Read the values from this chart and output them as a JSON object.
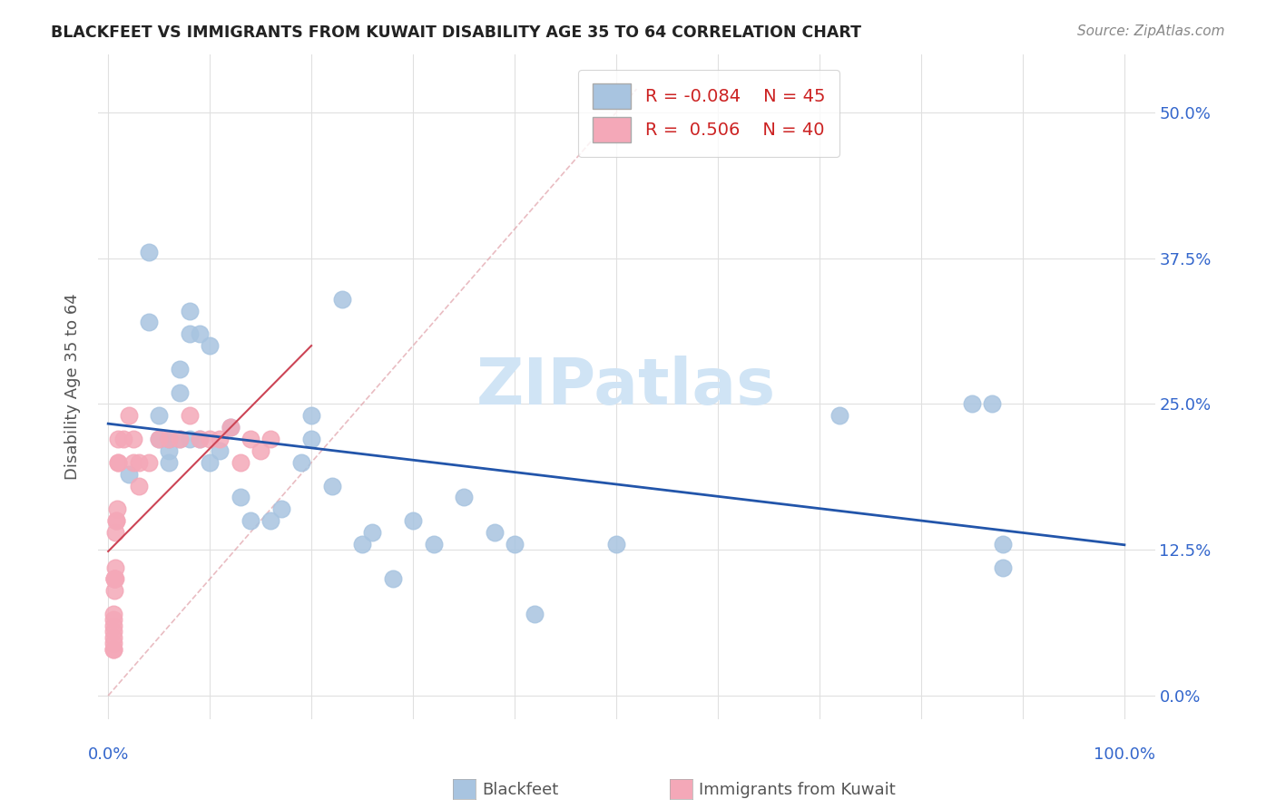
{
  "title": "BLACKFEET VS IMMIGRANTS FROM KUWAIT DISABILITY AGE 35 TO 64 CORRELATION CHART",
  "source": "Source: ZipAtlas.com",
  "ylabel": "Disability Age 35 to 64",
  "legend_label1": "Blackfeet",
  "legend_label2": "Immigrants from Kuwait",
  "R1": "-0.084",
  "N1": "45",
  "R2": "0.506",
  "N2": "40",
  "blackfeet_x": [
    0.02,
    0.04,
    0.04,
    0.05,
    0.05,
    0.06,
    0.06,
    0.06,
    0.06,
    0.07,
    0.07,
    0.07,
    0.08,
    0.08,
    0.08,
    0.09,
    0.09,
    0.1,
    0.1,
    0.11,
    0.12,
    0.13,
    0.14,
    0.16,
    0.17,
    0.19,
    0.2,
    0.2,
    0.22,
    0.23,
    0.25,
    0.26,
    0.28,
    0.3,
    0.32,
    0.35,
    0.38,
    0.4,
    0.42,
    0.5,
    0.72,
    0.85,
    0.87,
    0.88,
    0.88
  ],
  "blackfeet_y": [
    0.19,
    0.38,
    0.32,
    0.24,
    0.22,
    0.22,
    0.22,
    0.21,
    0.2,
    0.28,
    0.26,
    0.22,
    0.33,
    0.31,
    0.22,
    0.31,
    0.22,
    0.3,
    0.2,
    0.21,
    0.23,
    0.17,
    0.15,
    0.15,
    0.16,
    0.2,
    0.24,
    0.22,
    0.18,
    0.34,
    0.13,
    0.14,
    0.1,
    0.15,
    0.13,
    0.17,
    0.14,
    0.13,
    0.07,
    0.13,
    0.24,
    0.25,
    0.25,
    0.13,
    0.11
  ],
  "kuwait_x": [
    0.005,
    0.005,
    0.005,
    0.005,
    0.005,
    0.005,
    0.005,
    0.005,
    0.006,
    0.006,
    0.006,
    0.006,
    0.007,
    0.007,
    0.007,
    0.008,
    0.008,
    0.009,
    0.01,
    0.01,
    0.01,
    0.015,
    0.02,
    0.025,
    0.025,
    0.03,
    0.03,
    0.04,
    0.05,
    0.06,
    0.07,
    0.08,
    0.09,
    0.1,
    0.11,
    0.12,
    0.13,
    0.14,
    0.15,
    0.16
  ],
  "kuwait_y": [
    0.04,
    0.04,
    0.045,
    0.05,
    0.055,
    0.06,
    0.065,
    0.07,
    0.09,
    0.1,
    0.1,
    0.1,
    0.1,
    0.11,
    0.14,
    0.15,
    0.15,
    0.16,
    0.2,
    0.2,
    0.22,
    0.22,
    0.24,
    0.22,
    0.2,
    0.2,
    0.18,
    0.2,
    0.22,
    0.22,
    0.22,
    0.24,
    0.22,
    0.22,
    0.22,
    0.23,
    0.2,
    0.22,
    0.21,
    0.22
  ],
  "blue_color": "#a8c4e0",
  "pink_color": "#f4a8b8",
  "trend_blue_color": "#2255aa",
  "trend_pink_color": "#cc4455",
  "dashed_line_color": "#e0a0a8",
  "watermark_color": "#d0e4f5",
  "background_color": "#ffffff",
  "grid_color": "#e0e0e0",
  "ytick_vals": [
    0.0,
    0.125,
    0.25,
    0.375,
    0.5
  ],
  "xlim": [
    -0.01,
    1.03
  ],
  "ylim": [
    -0.02,
    0.55
  ]
}
